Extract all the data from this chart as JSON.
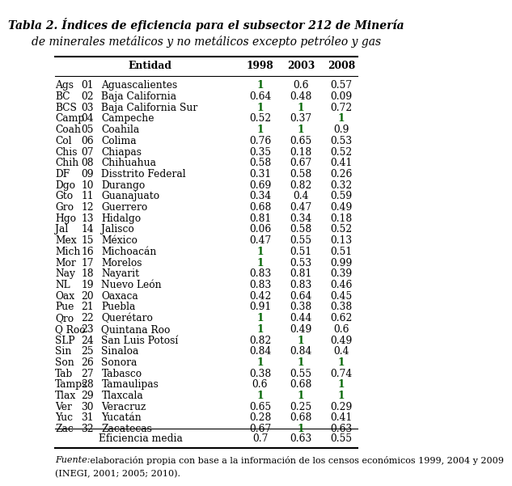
{
  "title_bold": "Tabla 2.",
  "title_italic": " Índices de eficiencia para el subsector 212 de Minería",
  "title_line2": "de minerales metálicos y no metálicos excepto petróleo y gas",
  "rows": [
    [
      "Ags",
      "01",
      "Aguascalientes",
      "1",
      "0.6",
      "0.57"
    ],
    [
      "BC",
      "02",
      "Baja California",
      "0.64",
      "0.48",
      "0.09"
    ],
    [
      "BCS",
      "03",
      "Baja California Sur",
      "1",
      "1",
      "0.72"
    ],
    [
      "Camp",
      "04",
      "Campeche",
      "0.52",
      "0.37",
      "1"
    ],
    [
      "Coah",
      "05",
      "Coahila",
      "1",
      "1",
      "0.9"
    ],
    [
      "Col",
      "06",
      "Colima",
      "0.76",
      "0.65",
      "0.53"
    ],
    [
      "Chis",
      "07",
      "Chiapas",
      "0.35",
      "0.18",
      "0.52"
    ],
    [
      "Chih",
      "08",
      "Chihuahua",
      "0.58",
      "0.67",
      "0.41"
    ],
    [
      "DF",
      "09",
      "Disstrito Federal",
      "0.31",
      "0.58",
      "0.26"
    ],
    [
      "Dgo",
      "10",
      "Durango",
      "0.69",
      "0.82",
      "0.32"
    ],
    [
      "Gto",
      "11",
      "Guanajuato",
      "0.34",
      "0.4",
      "0.59"
    ],
    [
      "Gro",
      "12",
      "Guerrero",
      "0.68",
      "0.47",
      "0.49"
    ],
    [
      "Hgo",
      "13",
      "Hidalgo",
      "0.81",
      "0.34",
      "0.18"
    ],
    [
      "Jal",
      "14",
      "Jalisco",
      "0.06",
      "0.58",
      "0.52"
    ],
    [
      "Mex",
      "15",
      "México",
      "0.47",
      "0.55",
      "0.13"
    ],
    [
      "Mich",
      "16",
      "Michoacán",
      "1",
      "0.51",
      "0.51"
    ],
    [
      "Mor",
      "17",
      "Morelos",
      "1",
      "0.53",
      "0.99"
    ],
    [
      "Nay",
      "18",
      "Nayarit",
      "0.83",
      "0.81",
      "0.39"
    ],
    [
      "NL",
      "19",
      "Nuevo León",
      "0.83",
      "0.83",
      "0.46"
    ],
    [
      "Oax",
      "20",
      "Oaxaca",
      "0.42",
      "0.64",
      "0.45"
    ],
    [
      "Pue",
      "21",
      "Puebla",
      "0.91",
      "0.38",
      "0.38"
    ],
    [
      "Qro",
      "22",
      "Querétaro",
      "1",
      "0.44",
      "0.62"
    ],
    [
      "Q Roo",
      "23",
      "Quintana Roo",
      "1",
      "0.49",
      "0.6"
    ],
    [
      "SLP",
      "24",
      "San Luis Potosí",
      "0.82",
      "1",
      "0.49"
    ],
    [
      "Sin",
      "25",
      "Sinaloa",
      "0.84",
      "0.84",
      "0.4"
    ],
    [
      "Son",
      "26",
      "Sonora",
      "1",
      "1",
      "1"
    ],
    [
      "Tab",
      "27",
      "Tabasco",
      "0.38",
      "0.55",
      "0.74"
    ],
    [
      "Tamps",
      "28",
      "Tamaulipas",
      "0.6",
      "0.68",
      "1"
    ],
    [
      "Tlax",
      "29",
      "Tlaxcala",
      "1",
      "1",
      "1"
    ],
    [
      "Ver",
      "30",
      "Veracruz",
      "0.65",
      "0.25",
      "0.29"
    ],
    [
      "Yuc",
      "31",
      "Yucatán",
      "0.28",
      "0.68",
      "0.41"
    ],
    [
      "Zac",
      "32",
      "Zacatecas",
      "0.67",
      "1",
      "0.63"
    ]
  ],
  "efficiency_row": [
    "Eficiencia media",
    "0.7",
    "0.63",
    "0.55"
  ],
  "footnote_italic": "Fuente:",
  "footnote_normal": " elaboración propia con base a la información de los censos económicos 1999, 2004 y 2009",
  "footnote_line2": "(INEGI, 2001; 2005; 2010).",
  "highlight_color": "#006400",
  "normal_color": "#000000",
  "bg_color": "#ffffff",
  "title_fontsize": 10.0,
  "data_fontsize": 8.8,
  "footnote_fontsize": 8.0
}
